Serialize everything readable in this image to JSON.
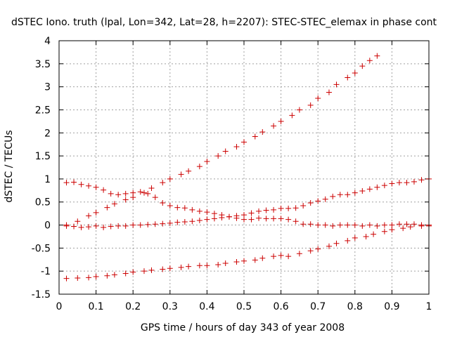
{
  "chart_data": {
    "type": "scatter",
    "title": "dSTEC Iono. truth (lpal, Lon=342, Lat=28, h=2207): STEC-STEC_elemax in phase cont",
    "xlabel": "GPS time / hours of day 343 of year 2008",
    "ylabel": "dSTEC  / TECUs",
    "xlim": [
      0,
      1
    ],
    "ylim": [
      -1.5,
      4
    ],
    "xticks": [
      0,
      0.1,
      0.2,
      0.3,
      0.4,
      0.5,
      0.6,
      0.7,
      0.8,
      0.9,
      1
    ],
    "xtick_labels": [
      "0",
      "0.1",
      "0.2",
      "0.3",
      "0.4",
      "0.5",
      "0.6",
      "0.7",
      "0.8",
      "0.9",
      "1"
    ],
    "yticks": [
      -1.5,
      -1,
      -0.5,
      0,
      0.5,
      1,
      1.5,
      2,
      2.5,
      3,
      3.5,
      4
    ],
    "ytick_labels": [
      "-1.5",
      "-1",
      "-0.5",
      "0",
      "0.5",
      "1",
      "1.5",
      "2",
      "2.5",
      "3",
      "3.5",
      "4"
    ],
    "grid": true,
    "marker": "+",
    "color": "#cc0000",
    "series": [
      {
        "points": [
          [
            0.02,
            0.0
          ],
          [
            0.05,
            0.08
          ],
          [
            0.08,
            0.2
          ],
          [
            0.1,
            0.27
          ],
          [
            0.13,
            0.38
          ],
          [
            0.15,
            0.46
          ],
          [
            0.18,
            0.55
          ],
          [
            0.2,
            0.6
          ],
          [
            0.23,
            0.7
          ],
          [
            0.25,
            0.8
          ],
          [
            0.28,
            0.92
          ],
          [
            0.3,
            1.0
          ],
          [
            0.33,
            1.1
          ],
          [
            0.35,
            1.17
          ],
          [
            0.38,
            1.27
          ],
          [
            0.4,
            1.38
          ],
          [
            0.43,
            1.5
          ],
          [
            0.45,
            1.6
          ],
          [
            0.48,
            1.7
          ],
          [
            0.5,
            1.8
          ],
          [
            0.53,
            1.92
          ],
          [
            0.55,
            2.02
          ],
          [
            0.58,
            2.15
          ],
          [
            0.6,
            2.25
          ],
          [
            0.63,
            2.38
          ],
          [
            0.65,
            2.5
          ],
          [
            0.68,
            2.6
          ],
          [
            0.7,
            2.75
          ],
          [
            0.73,
            2.88
          ],
          [
            0.75,
            3.05
          ],
          [
            0.78,
            3.2
          ],
          [
            0.8,
            3.3
          ],
          [
            0.82,
            3.45
          ],
          [
            0.84,
            3.57
          ],
          [
            0.86,
            3.67
          ]
        ]
      },
      {
        "points": [
          [
            0.02,
            0.92
          ],
          [
            0.04,
            0.93
          ],
          [
            0.06,
            0.88
          ],
          [
            0.08,
            0.85
          ],
          [
            0.1,
            0.82
          ],
          [
            0.12,
            0.76
          ],
          [
            0.14,
            0.68
          ],
          [
            0.16,
            0.66
          ],
          [
            0.18,
            0.68
          ],
          [
            0.2,
            0.7
          ],
          [
            0.22,
            0.72
          ],
          [
            0.24,
            0.68
          ],
          [
            0.26,
            0.6
          ],
          [
            0.28,
            0.48
          ],
          [
            0.3,
            0.42
          ],
          [
            0.32,
            0.38
          ],
          [
            0.34,
            0.37
          ],
          [
            0.36,
            0.33
          ],
          [
            0.38,
            0.3
          ],
          [
            0.4,
            0.28
          ],
          [
            0.42,
            0.25
          ],
          [
            0.44,
            0.22
          ],
          [
            0.46,
            0.18
          ],
          [
            0.48,
            0.15
          ],
          [
            0.5,
            0.12
          ],
          [
            0.52,
            0.12
          ],
          [
            0.54,
            0.15
          ],
          [
            0.56,
            0.14
          ],
          [
            0.58,
            0.14
          ],
          [
            0.6,
            0.14
          ],
          [
            0.62,
            0.12
          ],
          [
            0.64,
            0.08
          ],
          [
            0.66,
            0.02
          ],
          [
            0.68,
            0.02
          ],
          [
            0.7,
            0.0
          ],
          [
            0.72,
            0.0
          ],
          [
            0.74,
            -0.02
          ],
          [
            0.76,
            0.0
          ],
          [
            0.78,
            0.0
          ],
          [
            0.8,
            0.0
          ],
          [
            0.82,
            -0.02
          ],
          [
            0.84,
            0.0
          ],
          [
            0.86,
            -0.02
          ],
          [
            0.88,
            0.0
          ],
          [
            0.9,
            0.0
          ],
          [
            0.92,
            0.02
          ],
          [
            0.94,
            0.02
          ],
          [
            0.96,
            0.02
          ],
          [
            0.98,
            0.0
          ],
          [
            1.0,
            -0.02
          ]
        ]
      },
      {
        "points": [
          [
            0.02,
            -0.02
          ],
          [
            0.04,
            -0.03
          ],
          [
            0.06,
            -0.05
          ],
          [
            0.08,
            -0.04
          ],
          [
            0.1,
            -0.02
          ],
          [
            0.12,
            -0.05
          ],
          [
            0.14,
            -0.03
          ],
          [
            0.16,
            -0.02
          ],
          [
            0.18,
            -0.02
          ],
          [
            0.2,
            0.0
          ],
          [
            0.22,
            0.0
          ],
          [
            0.24,
            0.01
          ],
          [
            0.26,
            0.02
          ],
          [
            0.28,
            0.03
          ],
          [
            0.3,
            0.04
          ],
          [
            0.32,
            0.06
          ],
          [
            0.34,
            0.07
          ],
          [
            0.36,
            0.08
          ],
          [
            0.38,
            0.1
          ],
          [
            0.4,
            0.12
          ],
          [
            0.42,
            0.14
          ],
          [
            0.44,
            0.16
          ],
          [
            0.46,
            0.18
          ],
          [
            0.48,
            0.2
          ],
          [
            0.5,
            0.22
          ],
          [
            0.52,
            0.26
          ],
          [
            0.54,
            0.3
          ],
          [
            0.56,
            0.32
          ],
          [
            0.58,
            0.33
          ],
          [
            0.6,
            0.36
          ],
          [
            0.62,
            0.36
          ],
          [
            0.64,
            0.37
          ],
          [
            0.66,
            0.42
          ],
          [
            0.68,
            0.48
          ],
          [
            0.7,
            0.52
          ],
          [
            0.72,
            0.56
          ],
          [
            0.74,
            0.62
          ],
          [
            0.76,
            0.66
          ],
          [
            0.78,
            0.66
          ],
          [
            0.8,
            0.7
          ],
          [
            0.82,
            0.74
          ],
          [
            0.84,
            0.78
          ],
          [
            0.86,
            0.82
          ],
          [
            0.88,
            0.86
          ],
          [
            0.9,
            0.9
          ],
          [
            0.92,
            0.92
          ],
          [
            0.94,
            0.92
          ],
          [
            0.96,
            0.94
          ],
          [
            0.98,
            0.98
          ],
          [
            1.0,
            1.0
          ]
        ]
      },
      {
        "points": [
          [
            0.02,
            -1.16
          ],
          [
            0.05,
            -1.15
          ],
          [
            0.08,
            -1.14
          ],
          [
            0.1,
            -1.12
          ],
          [
            0.13,
            -1.1
          ],
          [
            0.15,
            -1.08
          ],
          [
            0.18,
            -1.05
          ],
          [
            0.2,
            -1.02
          ],
          [
            0.23,
            -1.0
          ],
          [
            0.25,
            -0.98
          ],
          [
            0.28,
            -0.96
          ],
          [
            0.3,
            -0.94
          ],
          [
            0.33,
            -0.92
          ],
          [
            0.35,
            -0.9
          ],
          [
            0.38,
            -0.88
          ],
          [
            0.4,
            -0.88
          ],
          [
            0.43,
            -0.86
          ],
          [
            0.45,
            -0.83
          ],
          [
            0.48,
            -0.8
          ],
          [
            0.5,
            -0.78
          ],
          [
            0.53,
            -0.76
          ],
          [
            0.55,
            -0.72
          ],
          [
            0.58,
            -0.68
          ],
          [
            0.6,
            -0.66
          ],
          [
            0.62,
            -0.68
          ],
          [
            0.65,
            -0.62
          ],
          [
            0.68,
            -0.56
          ],
          [
            0.7,
            -0.52
          ],
          [
            0.73,
            -0.46
          ],
          [
            0.75,
            -0.4
          ],
          [
            0.78,
            -0.34
          ],
          [
            0.8,
            -0.28
          ],
          [
            0.83,
            -0.25
          ],
          [
            0.85,
            -0.2
          ],
          [
            0.88,
            -0.14
          ],
          [
            0.9,
            -0.1
          ],
          [
            0.93,
            -0.07
          ],
          [
            0.95,
            -0.04
          ],
          [
            0.98,
            -0.02
          ],
          [
            1.0,
            0.0
          ]
        ]
      }
    ]
  }
}
